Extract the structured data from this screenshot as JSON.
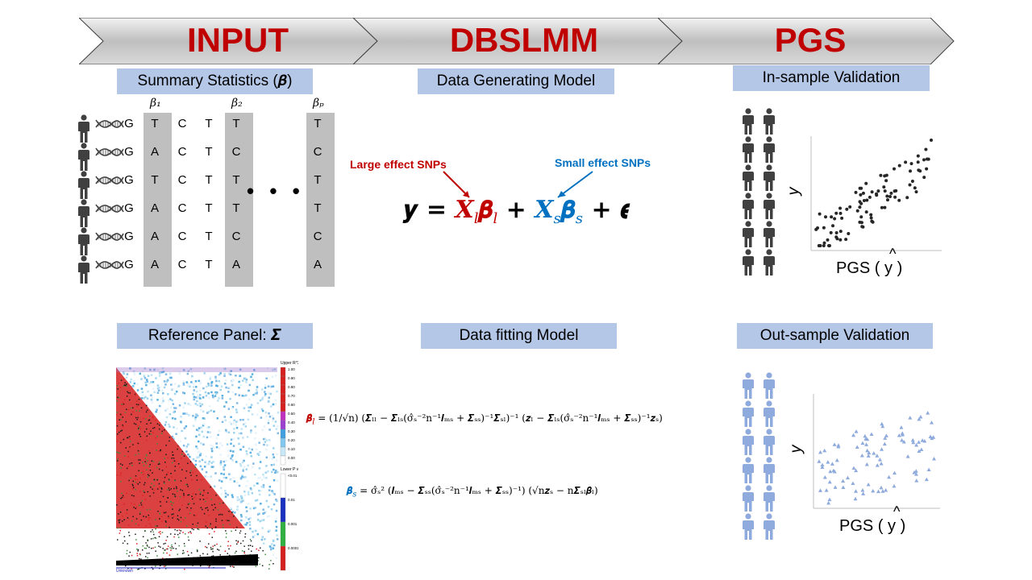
{
  "stages": {
    "input": "INPUT",
    "dbslmm": "DBSLMM",
    "pgs": "PGS"
  },
  "boxes": {
    "summary_statistics": "Summary Statistics (𝜷)",
    "data_generating_model": "Data Generating Model",
    "in_sample_validation": "In-sample  Validation",
    "reference_panel": "Reference Panel: 𝜮",
    "data_fitting_model": "Data fitting Model",
    "out_sample_validation": "Out-sample  Validation"
  },
  "genotype": {
    "beta_headers": [
      "β₁",
      "β₂",
      "βₚ"
    ],
    "rows": [
      [
        "G",
        "T",
        "C",
        "T",
        "T",
        "T"
      ],
      [
        "G",
        "A",
        "C",
        "T",
        "C",
        "C"
      ],
      [
        "G",
        "T",
        "C",
        "T",
        "T",
        "T"
      ],
      [
        "G",
        "A",
        "C",
        "T",
        "T",
        "T"
      ],
      [
        "G",
        "A",
        "C",
        "T",
        "C",
        "C"
      ],
      [
        "G",
        "A",
        "C",
        "T",
        "A",
        "A"
      ]
    ],
    "ellipsis": "• • •"
  },
  "model": {
    "large_effect": "Large effect SNPs",
    "small_effect": "Small effect SNPs",
    "eq_y": "𝒚 = ",
    "eq_xl": "𝑿",
    "eq_l_sub": "l",
    "eq_bl": "𝜷",
    "eq_plus1": " + ",
    "eq_xs": "𝑿",
    "eq_s_sub": "s",
    "eq_bs": "𝜷",
    "eq_plus2": " + 𝝐",
    "colors": {
      "large": "#c00000",
      "small": "#0070c0"
    }
  },
  "fitting": {
    "beta_l_lhs": "𝜷̂",
    "beta_l_rhs": "= (1/√n) (𝜮ₗₗ − 𝜮ₗₛ(σ̂ₛ⁻²n⁻¹𝑰ₘₛ + 𝜮ₛₛ)⁻¹𝜮ₛₗ)⁻¹ (𝒛ₗ − 𝜮ₗₛ(σ̂ₛ⁻²n⁻¹𝑰ₘₛ + 𝜮ₛₛ)⁻¹𝒛ₛ)",
    "beta_s_lhs": "𝜷̂",
    "beta_s_rhs": "= σ̂ₛ² (𝑰ₘₛ − 𝜮ₛₛ(σ̂ₛ⁻²n⁻¹𝑰ₘₛ + 𝜮ₛₛ)⁻¹) (√n𝒛ₛ − n𝜮ₛₗ𝜷̂ₗ)",
    "sub_l": "l",
    "sub_s": "s"
  },
  "heatmap_legend": {
    "upper_title": "Upper R^2",
    "upper_ticks": [
      "1.00",
      "0.90",
      "0.80",
      "0.70",
      "0.60",
      "0.50",
      "0.40",
      "0.30",
      "0.20",
      "0.10",
      "0.00"
    ],
    "lower_title": "Lower P value",
    "lower_ticks": [
      "<0.01",
      "0.01",
      "0.001",
      "0.0001"
    ],
    "footer": "Unknown"
  },
  "scatter_in": {
    "ylabel": "y",
    "xlabel": "PGS ( y )",
    "xlabel_hat": "^"
  },
  "scatter_out": {
    "ylabel": "y",
    "xlabel": "PGS ( y )",
    "xlabel_hat": "^"
  },
  "colors": {
    "stage_red": "#c00000",
    "box_blue": "#b4c7e7",
    "person_dark": "#404040",
    "person_light": "#8faadc",
    "gray_col": "#bfbfbf"
  }
}
